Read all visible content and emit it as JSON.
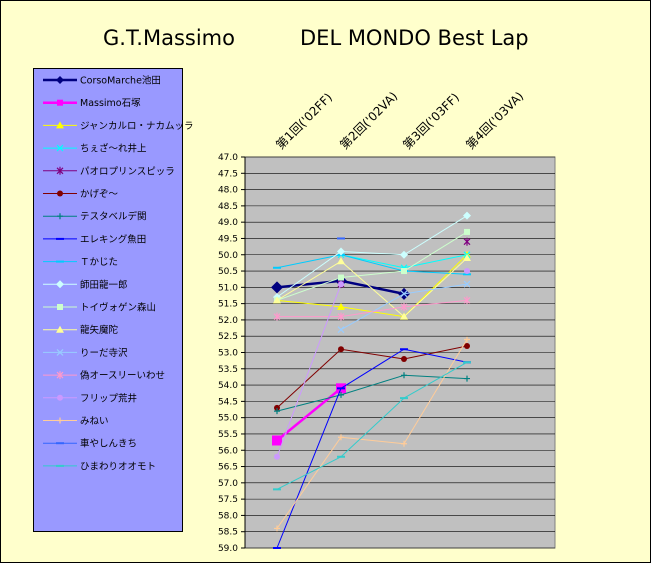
{
  "title_left": "G.T.Massimo",
  "title_right": "DEL MONDO Best Lap",
  "chart_data": {
    "type": "line",
    "title": "G.T.Massimo DEL MONDO Best Lap",
    "categories": [
      "第1回('02FF)",
      "第2回('02VA)",
      "第3回('03FF)",
      "第4回('03VA)"
    ],
    "ylim": [
      47.0,
      59.0
    ],
    "y_reversed": true,
    "y_ticks": [
      "47.0",
      "47.5",
      "48.0",
      "48.5",
      "49.0",
      "49.5",
      "50.0",
      "50.5",
      "51.0",
      "51.5",
      "52.0",
      "52.5",
      "53.0",
      "53.5",
      "54.0",
      "54.5",
      "55.0",
      "55.5",
      "56.0",
      "56.5",
      "57.0",
      "57.5",
      "58.0",
      "58.5",
      "59.0"
    ],
    "legend_position": "left",
    "grid": true,
    "plot_background": "#C0C0C0",
    "series": [
      {
        "name": "CorsoMarche池田",
        "color": "#000080",
        "marker": "diamond",
        "values": [
          51.0,
          50.8,
          51.2,
          null
        ]
      },
      {
        "name": "Massimo石塚",
        "color": "#FF00FF",
        "marker": "square",
        "values": [
          55.7,
          54.1,
          null,
          null
        ]
      },
      {
        "name": "ジャンカルロ・ナカムッラ",
        "color": "#FFFF00",
        "marker": "triangle",
        "values": [
          51.4,
          51.6,
          51.9,
          50.0
        ]
      },
      {
        "name": "ちぇざ～れ井上",
        "color": "#00FFFF",
        "marker": "x",
        "values": [
          null,
          50.0,
          50.4,
          50.0
        ]
      },
      {
        "name": "パオロプリンスピッラ",
        "color": "#800080",
        "marker": "star",
        "values": [
          null,
          50.9,
          null,
          49.6
        ]
      },
      {
        "name": "かげぞ～",
        "color": "#800000",
        "marker": "circle",
        "values": [
          54.7,
          52.9,
          53.2,
          52.8
        ]
      },
      {
        "name": "テスタベルデ関",
        "color": "#008080",
        "marker": "plus",
        "values": [
          54.8,
          54.3,
          53.7,
          53.8
        ]
      },
      {
        "name": "エレキング魚田",
        "color": "#0000FF",
        "marker": "dash",
        "values": [
          59.0,
          54.1,
          52.9,
          53.3
        ]
      },
      {
        "name": "Ｔかじた",
        "color": "#00CCFF",
        "marker": "dash",
        "values": [
          50.4,
          50.0,
          50.5,
          50.6
        ]
      },
      {
        "name": "師田龍一郎",
        "color": "#CCFFFF",
        "marker": "diamond",
        "values": [
          51.3,
          49.9,
          50.0,
          48.8
        ]
      },
      {
        "name": "トイヴォゲン森山",
        "color": "#CCFFCC",
        "marker": "square",
        "values": [
          51.4,
          50.7,
          50.5,
          49.3
        ]
      },
      {
        "name": "龍矢魔陀",
        "color": "#FFFF99",
        "marker": "triangle",
        "values": [
          51.4,
          50.2,
          51.9,
          50.1
        ]
      },
      {
        "name": "りーだ寺沢",
        "color": "#99CCFF",
        "marker": "x",
        "values": [
          null,
          52.3,
          51.2,
          50.9
        ]
      },
      {
        "name": "偽オースリーいわせ",
        "color": "#FF99CC",
        "marker": "star",
        "values": [
          51.9,
          51.9,
          51.6,
          51.4
        ]
      },
      {
        "name": "フリップ荒井",
        "color": "#CC99FF",
        "marker": "circle",
        "values": [
          56.2,
          50.9,
          null,
          50.5
        ]
      },
      {
        "name": "みねい",
        "color": "#FFCC99",
        "marker": "plus",
        "values": [
          58.4,
          55.6,
          55.8,
          52.6
        ]
      },
      {
        "name": "車やしんきち",
        "color": "#3366FF",
        "marker": "dash",
        "values": [
          null,
          49.5,
          null,
          null
        ]
      },
      {
        "name": "ひまわりオオモト",
        "color": "#33CCCC",
        "marker": "dash",
        "values": [
          57.2,
          56.2,
          54.4,
          53.3
        ]
      }
    ]
  }
}
